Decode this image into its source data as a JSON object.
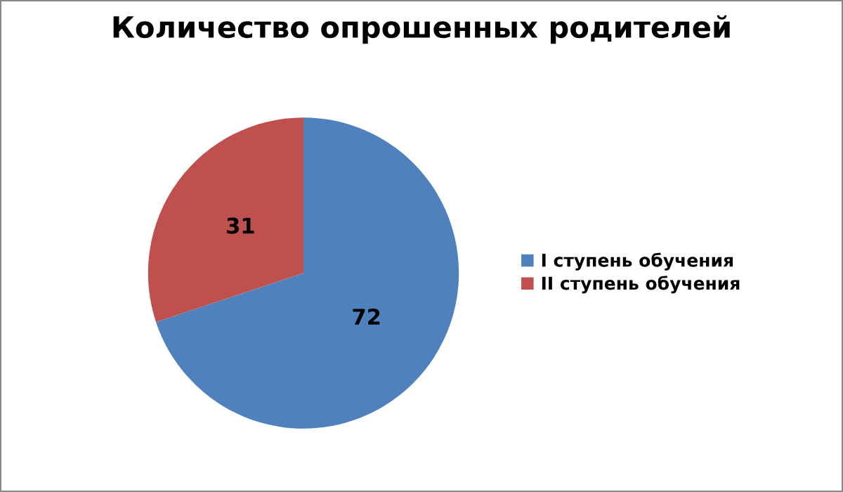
{
  "chart_data": {
    "type": "pie",
    "title": "Количество опрошенных родителей",
    "categories": [
      "I ступень обучения",
      "II ступень обучения"
    ],
    "values": [
      72,
      31
    ],
    "colors": [
      "#4f81bd",
      "#c0504d"
    ],
    "data_labels": true,
    "legend": "right"
  }
}
